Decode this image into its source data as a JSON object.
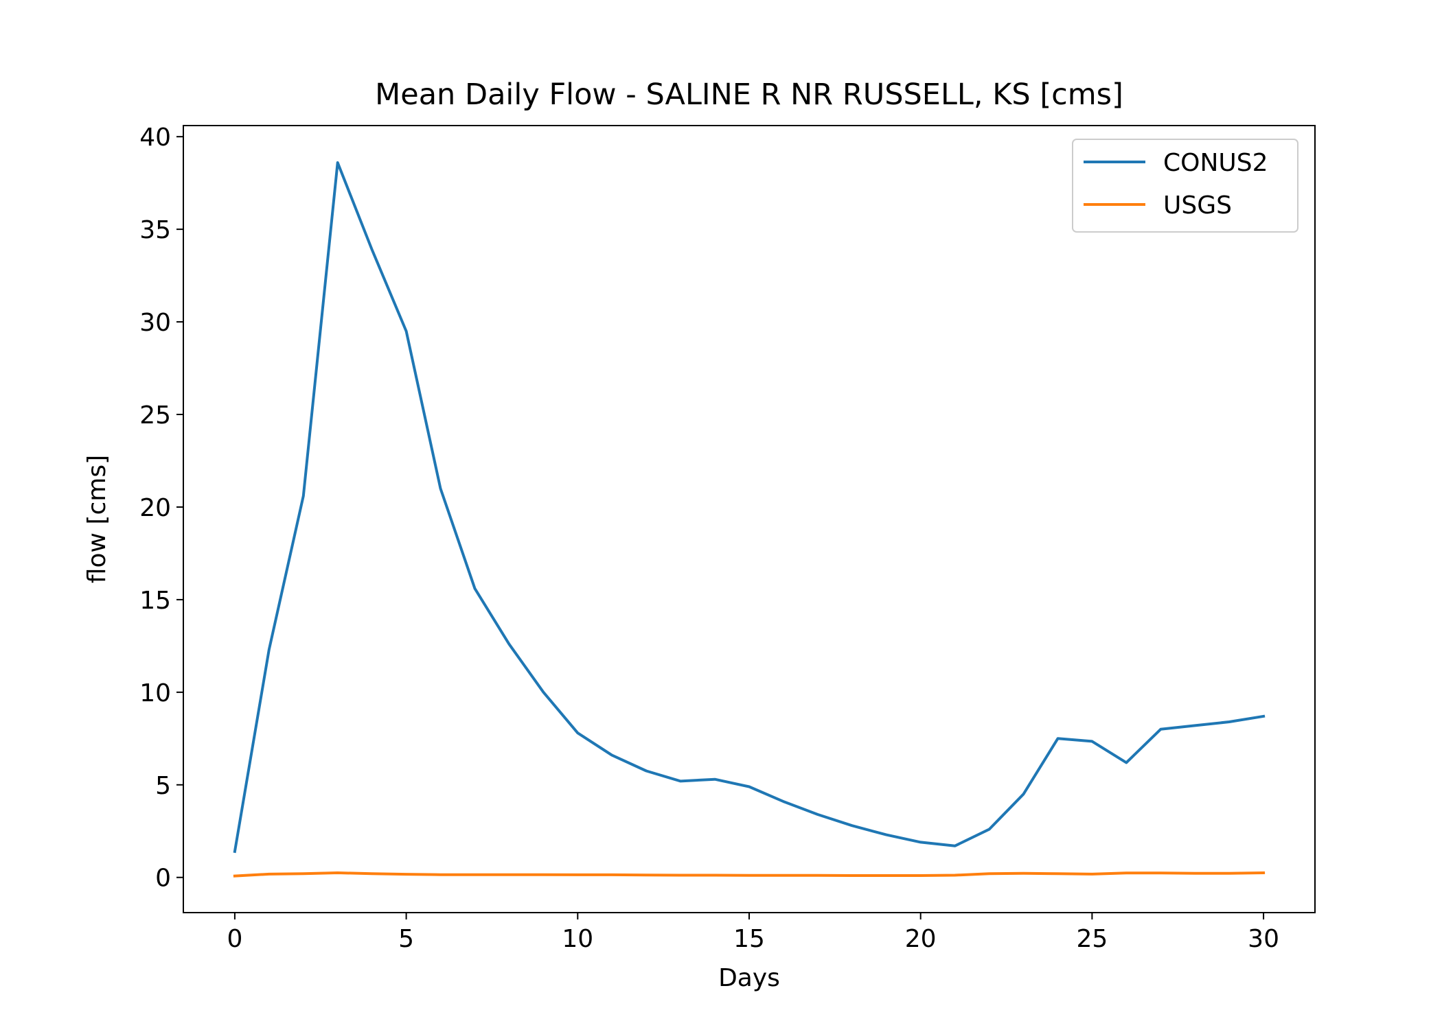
{
  "chart_data": {
    "type": "line",
    "title": "Mean Daily Flow - SALINE R NR RUSSELL, KS [cms]",
    "xlabel": "Days",
    "ylabel": "flow [cms]",
    "xlim": [
      -1.5,
      31.5
    ],
    "ylim": [
      -1.9,
      40.6
    ],
    "xticks": [
      0,
      5,
      10,
      15,
      20,
      25,
      30
    ],
    "yticks": [
      0,
      5,
      10,
      15,
      20,
      25,
      30,
      35,
      40
    ],
    "grid": false,
    "legend_position": "upper right",
    "x": [
      0,
      1,
      2,
      3,
      4,
      5,
      6,
      7,
      8,
      9,
      10,
      11,
      12,
      13,
      14,
      15,
      16,
      17,
      18,
      19,
      20,
      21,
      22,
      23,
      24,
      25,
      26,
      27,
      28,
      29,
      30
    ],
    "series": [
      {
        "name": "CONUS2",
        "color": "#1f77b4",
        "values": [
          1.4,
          12.3,
          20.6,
          38.6,
          33.9,
          29.5,
          21.0,
          15.6,
          12.6,
          10.0,
          7.8,
          6.6,
          5.75,
          5.2,
          5.3,
          4.9,
          4.1,
          3.4,
          2.8,
          2.3,
          1.9,
          1.7,
          2.6,
          4.5,
          7.5,
          7.35,
          6.2,
          8.0,
          8.2,
          8.4,
          8.7
        ]
      },
      {
        "name": "USGS",
        "color": "#ff7f0e",
        "values": [
          0.08,
          0.18,
          0.2,
          0.25,
          0.2,
          0.17,
          0.15,
          0.15,
          0.15,
          0.15,
          0.14,
          0.14,
          0.13,
          0.12,
          0.12,
          0.11,
          0.11,
          0.11,
          0.1,
          0.1,
          0.1,
          0.12,
          0.2,
          0.22,
          0.2,
          0.18,
          0.24,
          0.24,
          0.22,
          0.22,
          0.25
        ]
      }
    ]
  }
}
